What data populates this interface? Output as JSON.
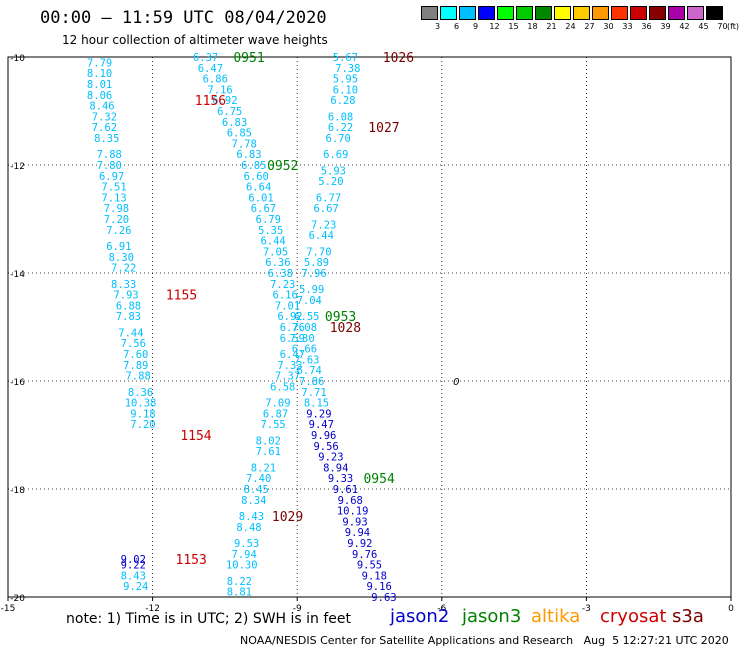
{
  "title": "00:00 – 11:59 UTC 08/04/2020",
  "subtitle": "12 hour collection of altimeter wave heights",
  "note": "note: 1) Time is in UTC; 2) SWH is in feet",
  "credit": "NOAA/NESDIS Center for Satellite Applications and Research   Aug  5 12:27:21 UTC 2020",
  "legend": [
    {
      "name": "jason2",
      "color": "#0000cc"
    },
    {
      "name": "jason3",
      "color": "#008000"
    },
    {
      "name": "altika",
      "color": "#ff9900"
    },
    {
      "name": "cryosat",
      "color": "#cc0000"
    },
    {
      "name": "s3a",
      "color": "#7a0000"
    }
  ],
  "colorbar": {
    "unit": "(ft)",
    "colors": [
      "#808080",
      "#00ffff",
      "#00bfff",
      "#0000ff",
      "#00ff00",
      "#00cc00",
      "#008800",
      "#ffff00",
      "#ffcc00",
      "#ff9900",
      "#ff3300",
      "#cc0000",
      "#880000",
      "#aa00aa",
      "#cc66cc",
      "#000000"
    ],
    "labels": [
      "3",
      "6",
      "9",
      "12",
      "15",
      "18",
      "21",
      "24",
      "27",
      "30",
      "33",
      "36",
      "39",
      "42",
      "45",
      "70"
    ]
  },
  "chart_data": {
    "type": "scatter",
    "title": "00:00 – 11:59 UTC 08/04/2020",
    "xlim": [
      -15,
      0
    ],
    "ylim": [
      -20,
      -10
    ],
    "xticks": [
      "-15",
      "-12",
      "-9",
      "-6",
      "-3",
      "0"
    ],
    "yticks": [
      "-10",
      "-12",
      "-14",
      "-16",
      "-18",
      "-20"
    ],
    "stray_label": {
      "x": -5.7,
      "y": -16.0,
      "text": "0"
    },
    "pass_labels": [
      {
        "x": -10.0,
        "y": -10.0,
        "text": "0951",
        "color": "#008000"
      },
      {
        "x": -10.8,
        "y": -10.8,
        "text": "1156",
        "color": "#cc0000"
      },
      {
        "x": -6.9,
        "y": -10.0,
        "text": "1026",
        "color": "#7a0000"
      },
      {
        "x": -7.2,
        "y": -11.3,
        "text": "1027",
        "color": "#7a0000"
      },
      {
        "x": -9.3,
        "y": -12.0,
        "text": "0952",
        "color": "#008000"
      },
      {
        "x": -11.4,
        "y": -14.4,
        "text": "1155",
        "color": "#cc0000"
      },
      {
        "x": -8.1,
        "y": -14.8,
        "text": "0953",
        "color": "#008000"
      },
      {
        "x": -8.0,
        "y": -15.0,
        "text": "1028",
        "color": "#7a0000"
      },
      {
        "x": -11.1,
        "y": -17.0,
        "text": "1154",
        "color": "#cc0000"
      },
      {
        "x": -7.3,
        "y": -17.8,
        "text": "0954",
        "color": "#008000"
      },
      {
        "x": -9.2,
        "y": -18.5,
        "text": "1029",
        "color": "#7a0000"
      },
      {
        "x": -11.2,
        "y": -19.3,
        "text": "1153",
        "color": "#cc0000"
      }
    ],
    "series": [
      {
        "name": "track-1",
        "color": "#00bfff",
        "points": [
          {
            "x": -13.1,
            "y": -10.1,
            "v": "7.79"
          },
          {
            "x": -13.1,
            "y": -10.3,
            "v": "8.10"
          },
          {
            "x": -13.1,
            "y": -10.5,
            "v": "8.01"
          },
          {
            "x": -13.1,
            "y": -10.7,
            "v": "8.06"
          },
          {
            "x": -13.05,
            "y": -10.9,
            "v": "8.46"
          },
          {
            "x": -13.0,
            "y": -11.1,
            "v": "7.32"
          },
          {
            "x": -13.0,
            "y": -11.3,
            "v": "7.62"
          },
          {
            "x": -12.95,
            "y": -11.5,
            "v": "8.35"
          },
          {
            "x": -12.9,
            "y": -11.8,
            "v": "7.88"
          },
          {
            "x": -12.9,
            "y": -12.0,
            "v": "7.80"
          },
          {
            "x": -12.85,
            "y": -12.2,
            "v": "6.97"
          },
          {
            "x": -12.8,
            "y": -12.4,
            "v": "7.51"
          },
          {
            "x": -12.8,
            "y": -12.6,
            "v": "7.13"
          },
          {
            "x": -12.75,
            "y": -12.8,
            "v": "7.98"
          },
          {
            "x": -12.75,
            "y": -13.0,
            "v": "7.20"
          },
          {
            "x": -12.7,
            "y": -13.2,
            "v": "7.26"
          },
          {
            "x": -12.7,
            "y": -13.5,
            "v": "6.91"
          },
          {
            "x": -12.65,
            "y": -13.7,
            "v": "8.30"
          },
          {
            "x": -12.6,
            "y": -13.9,
            "v": "7.22"
          },
          {
            "x": -12.6,
            "y": -14.2,
            "v": "8.33"
          },
          {
            "x": -12.55,
            "y": -14.4,
            "v": "7.93"
          },
          {
            "x": -12.5,
            "y": -14.6,
            "v": "6.88"
          },
          {
            "x": -12.5,
            "y": -14.8,
            "v": "7.83"
          },
          {
            "x": -12.45,
            "y": -15.1,
            "v": "7.44"
          },
          {
            "x": -12.4,
            "y": -15.3,
            "v": "7.56"
          },
          {
            "x": -12.35,
            "y": -15.5,
            "v": "7.60"
          },
          {
            "x": -12.35,
            "y": -15.7,
            "v": "7.89"
          },
          {
            "x": -12.3,
            "y": -15.9,
            "v": "7.88"
          },
          {
            "x": -12.25,
            "y": -16.2,
            "v": "8.36"
          },
          {
            "x": -12.25,
            "y": -16.4,
            "v": "10.38"
          },
          {
            "x": -12.2,
            "y": -16.6,
            "v": "9.18"
          },
          {
            "x": -12.2,
            "y": -16.8,
            "v": "7.20"
          }
        ]
      },
      {
        "name": "track-2",
        "color": "#00bfff",
        "points": [
          {
            "x": -10.9,
            "y": -10.0,
            "v": "6.37"
          },
          {
            "x": -10.8,
            "y": -10.2,
            "v": "6.47"
          },
          {
            "x": -10.7,
            "y": -10.4,
            "v": "6.86"
          },
          {
            "x": -10.6,
            "y": -10.6,
            "v": "7.16"
          },
          {
            "x": -10.5,
            "y": -10.8,
            "v": "6.92"
          },
          {
            "x": -10.4,
            "y": -11.0,
            "v": "6.75"
          },
          {
            "x": -10.3,
            "y": -11.2,
            "v": "6.83"
          },
          {
            "x": -10.2,
            "y": -11.4,
            "v": "6.85"
          },
          {
            "x": -10.1,
            "y": -11.6,
            "v": "7.78"
          },
          {
            "x": -10.0,
            "y": -11.8,
            "v": "6.83"
          },
          {
            "x": -9.9,
            "y": -12.0,
            "v": "6.85"
          },
          {
            "x": -9.85,
            "y": -12.2,
            "v": "6.60"
          },
          {
            "x": -9.8,
            "y": -12.4,
            "v": "6.64"
          },
          {
            "x": -9.75,
            "y": -12.6,
            "v": "6.01"
          },
          {
            "x": -9.7,
            "y": -12.8,
            "v": "6.67"
          },
          {
            "x": -9.6,
            "y": -13.0,
            "v": "6.79"
          },
          {
            "x": -9.55,
            "y": -13.2,
            "v": "5.35"
          },
          {
            "x": -9.5,
            "y": -13.4,
            "v": "6.44"
          },
          {
            "x": -9.45,
            "y": -13.6,
            "v": "7.05"
          },
          {
            "x": -9.4,
            "y": -13.8,
            "v": "6.36"
          },
          {
            "x": -9.35,
            "y": -14.0,
            "v": "6.38"
          },
          {
            "x": -9.3,
            "y": -14.2,
            "v": "7.23"
          },
          {
            "x": -9.25,
            "y": -14.4,
            "v": "6.16"
          },
          {
            "x": -9.2,
            "y": -14.6,
            "v": "7.01"
          },
          {
            "x": -9.15,
            "y": -14.8,
            "v": "6.92"
          },
          {
            "x": -9.1,
            "y": -15.0,
            "v": "6.76"
          },
          {
            "x": -9.1,
            "y": -15.2,
            "v": "6.59"
          },
          {
            "x": -9.1,
            "y": -15.5,
            "v": "6.47"
          },
          {
            "x": -9.15,
            "y": -15.7,
            "v": "7.33"
          },
          {
            "x": -9.2,
            "y": -15.9,
            "v": "7.37"
          },
          {
            "x": -9.3,
            "y": -16.1,
            "v": "6.58"
          },
          {
            "x": -9.4,
            "y": -16.4,
            "v": "7.09"
          },
          {
            "x": -9.45,
            "y": -16.6,
            "v": "6.87"
          },
          {
            "x": -9.5,
            "y": -16.8,
            "v": "7.55"
          },
          {
            "x": -9.6,
            "y": -17.1,
            "v": "8.02"
          },
          {
            "x": -9.6,
            "y": -17.3,
            "v": "7.61"
          },
          {
            "x": -9.7,
            "y": -17.6,
            "v": "8.21"
          },
          {
            "x": -9.8,
            "y": -17.8,
            "v": "7.40"
          },
          {
            "x": -9.85,
            "y": -18.0,
            "v": "8.45"
          },
          {
            "x": -9.9,
            "y": -18.2,
            "v": "8.34"
          },
          {
            "x": -9.95,
            "y": -18.5,
            "v": "8.43"
          },
          {
            "x": -10.0,
            "y": -18.7,
            "v": "8.48"
          },
          {
            "x": -10.05,
            "y": -19.0,
            "v": "9.53"
          },
          {
            "x": -10.1,
            "y": -19.2,
            "v": "7.94"
          },
          {
            "x": -10.15,
            "y": -19.4,
            "v": "10.30"
          },
          {
            "x": -10.2,
            "y": -19.7,
            "v": "8.22"
          },
          {
            "x": -10.2,
            "y": -19.9,
            "v": "8.81"
          }
        ]
      },
      {
        "name": "track-3",
        "color": "#00bfff",
        "points": [
          {
            "x": -8.0,
            "y": -10.0,
            "v": "5.67"
          },
          {
            "x": -7.95,
            "y": -10.2,
            "v": "7.38"
          },
          {
            "x": -8.0,
            "y": -10.4,
            "v": "5.95"
          },
          {
            "x": -8.0,
            "y": -10.6,
            "v": "6.10"
          },
          {
            "x": -8.05,
            "y": -10.8,
            "v": "6.28"
          },
          {
            "x": -8.1,
            "y": -11.1,
            "v": "6.08"
          },
          {
            "x": -8.1,
            "y": -11.3,
            "v": "6.22"
          },
          {
            "x": -8.15,
            "y": -11.5,
            "v": "6.70"
          },
          {
            "x": -8.2,
            "y": -11.8,
            "v": "6.69"
          },
          {
            "x": -8.25,
            "y": -12.1,
            "v": "5.93"
          },
          {
            "x": -8.3,
            "y": -12.3,
            "v": "5.20"
          },
          {
            "x": -8.35,
            "y": -12.6,
            "v": "6.77"
          },
          {
            "x": -8.4,
            "y": -12.8,
            "v": "6.67"
          },
          {
            "x": -8.45,
            "y": -13.1,
            "v": "7.23"
          },
          {
            "x": -8.5,
            "y": -13.3,
            "v": "6.44"
          },
          {
            "x": -8.55,
            "y": -13.6,
            "v": "7.70"
          },
          {
            "x": -8.6,
            "y": -13.8,
            "v": "5.89"
          },
          {
            "x": -8.65,
            "y": -14.0,
            "v": "7.96"
          },
          {
            "x": -8.7,
            "y": -14.3,
            "v": "5.99"
          },
          {
            "x": -8.75,
            "y": -14.5,
            "v": "7.04"
          },
          {
            "x": -8.8,
            "y": -14.8,
            "v": "6.55"
          },
          {
            "x": -8.85,
            "y": -15.0,
            "v": "7.08"
          },
          {
            "x": -8.9,
            "y": -15.2,
            "v": "7.30"
          },
          {
            "x": -8.85,
            "y": -15.4,
            "v": "6.66"
          },
          {
            "x": -8.8,
            "y": -15.6,
            "v": "7.63"
          },
          {
            "x": -8.75,
            "y": -15.8,
            "v": "6.74"
          },
          {
            "x": -8.7,
            "y": -16.0,
            "v": "7.86"
          },
          {
            "x": -8.65,
            "y": -16.2,
            "v": "7.71"
          },
          {
            "x": -8.6,
            "y": -16.4,
            "v": "8.15"
          }
        ]
      },
      {
        "name": "track-4",
        "color": "#0000cc",
        "points": [
          {
            "x": -8.55,
            "y": -16.6,
            "v": "9.29"
          },
          {
            "x": -8.5,
            "y": -16.8,
            "v": "9.47"
          },
          {
            "x": -8.45,
            "y": -17.0,
            "v": "9.96"
          },
          {
            "x": -8.4,
            "y": -17.2,
            "v": "9.56"
          },
          {
            "x": -8.3,
            "y": -17.4,
            "v": "9.23"
          },
          {
            "x": -8.2,
            "y": -17.6,
            "v": "8.94"
          },
          {
            "x": -8.1,
            "y": -17.8,
            "v": "9.33"
          },
          {
            "x": -8.0,
            "y": -18.0,
            "v": "9.61"
          },
          {
            "x": -7.9,
            "y": -18.2,
            "v": "9.68"
          },
          {
            "x": -7.85,
            "y": -18.4,
            "v": "10.19"
          },
          {
            "x": -7.8,
            "y": -18.6,
            "v": "9.93"
          },
          {
            "x": -7.75,
            "y": -18.8,
            "v": "9.94"
          },
          {
            "x": -7.7,
            "y": -19.0,
            "v": "9.92"
          },
          {
            "x": -7.6,
            "y": -19.2,
            "v": "9.76"
          },
          {
            "x": -7.5,
            "y": -19.4,
            "v": "9.55"
          },
          {
            "x": -7.4,
            "y": -19.6,
            "v": "9.18"
          },
          {
            "x": -7.3,
            "y": -19.8,
            "v": "9.16"
          },
          {
            "x": -7.2,
            "y": -20.0,
            "v": "9.63"
          }
        ]
      },
      {
        "name": "track-5",
        "color": "#0000cc",
        "points": [
          {
            "x": -12.4,
            "y": -19.3,
            "v": "9.02"
          },
          {
            "x": -12.4,
            "y": -19.4,
            "v": "9.22"
          }
        ]
      },
      {
        "name": "track-6",
        "color": "#00bfff",
        "points": [
          {
            "x": -12.4,
            "y": -19.6,
            "v": "8.43"
          },
          {
            "x": -12.35,
            "y": -19.8,
            "v": "9.24"
          }
        ]
      }
    ]
  }
}
